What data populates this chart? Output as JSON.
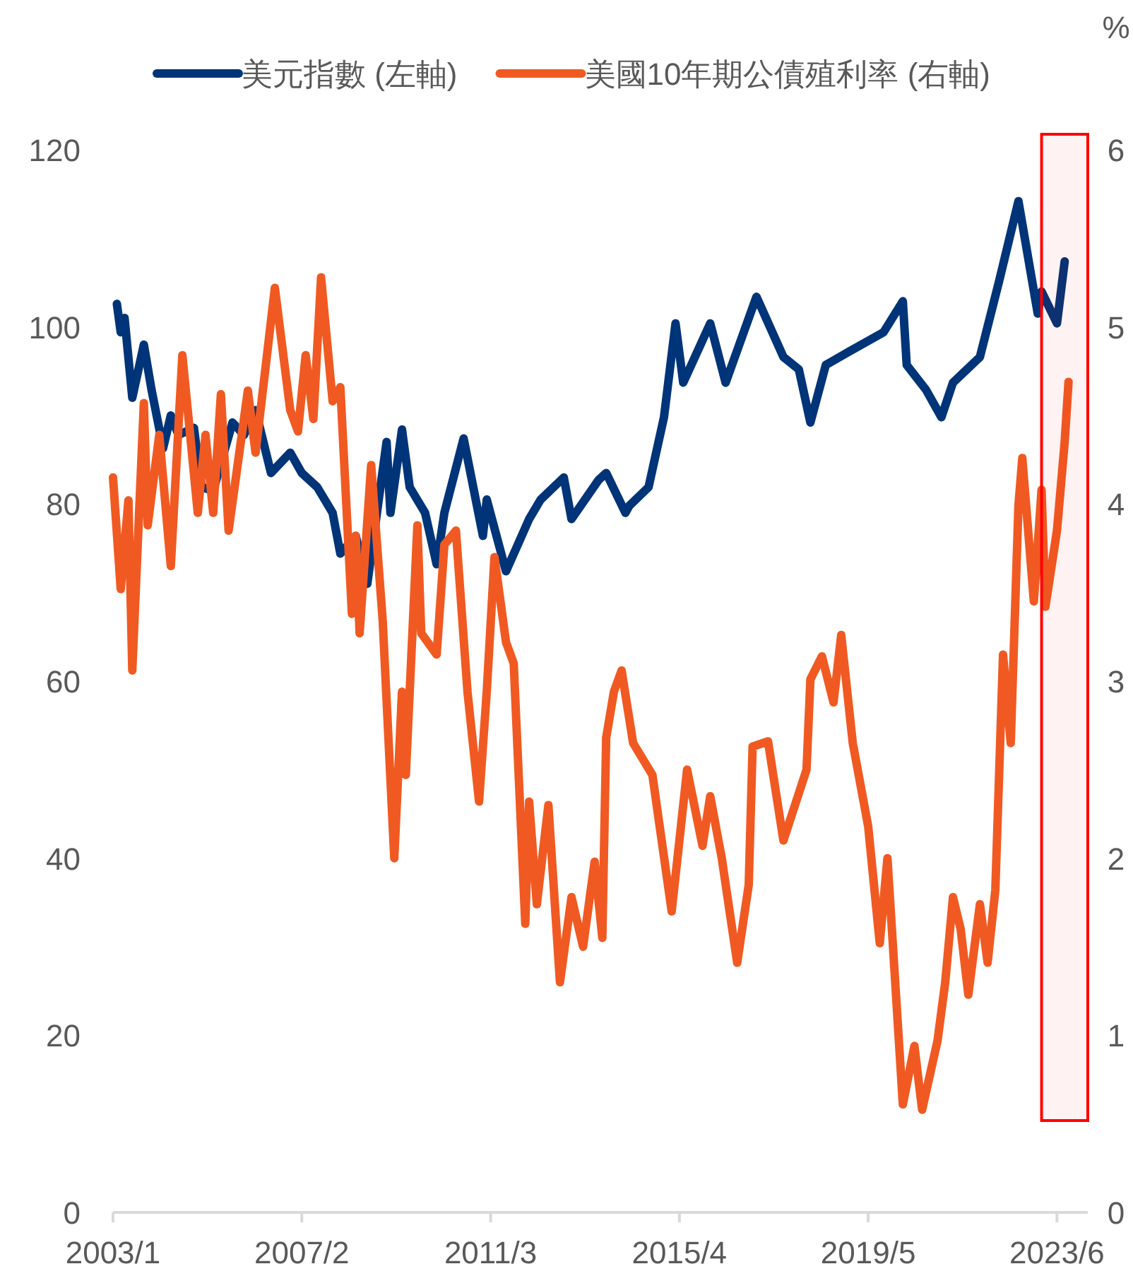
{
  "chart_data": {
    "type": "line",
    "y2label": "%",
    "legend": "top",
    "line_style": "solid",
    "marker": "none",
    "xlim": [
      "2003-01",
      "2024-02"
    ],
    "xticks": [
      {
        "value": "2003-01",
        "label": "2003/1"
      },
      {
        "value": "2007-02",
        "label": "2007/2"
      },
      {
        "value": "2011-03",
        "label": "2011/3"
      },
      {
        "value": "2015-04",
        "label": "2015/4"
      },
      {
        "value": "2019-05",
        "label": "2019/5"
      },
      {
        "value": "2023-06",
        "label": "2023/6"
      }
    ],
    "ylim": [
      0,
      120
    ],
    "yticks": [
      0,
      20,
      40,
      60,
      80,
      100,
      120
    ],
    "y2lim": [
      0,
      6
    ],
    "y2ticks": [
      0,
      1,
      2,
      3,
      4,
      5,
      6
    ],
    "bands": [
      {
        "axis": "x",
        "from": "2023-02",
        "to": "2024-02",
        "color": "#ff0000"
      }
    ],
    "series": [
      {
        "name": "美元指數 (左軸)",
        "color": "#003478",
        "x": [
          "2003-02",
          "2003-03",
          "2003-04",
          "2003-06",
          "2003-09",
          "2003-11",
          "2004-02",
          "2004-04",
          "2004-06",
          "2004-10",
          "2004-12",
          "2005-03",
          "2005-08",
          "2005-11",
          "2006-02",
          "2006-06",
          "2006-11",
          "2007-02",
          "2007-06",
          "2007-10",
          "2007-12",
          "2008-04",
          "2008-07",
          "2008-12",
          "2009-01",
          "2009-04",
          "2009-06",
          "2009-10",
          "2010-01",
          "2010-03",
          "2010-08",
          "2010-10",
          "2011-01",
          "2011-02",
          "2011-07",
          "2012-01",
          "2012-04",
          "2012-10",
          "2012-12",
          "2013-07",
          "2013-09",
          "2014-02",
          "2014-03",
          "2014-08",
          "2014-12",
          "2015-03",
          "2015-05",
          "2015-12",
          "2016-04",
          "2016-12",
          "2017-07",
          "2017-11",
          "2018-02",
          "2018-06",
          "2018-12",
          "2019-09",
          "2020-02",
          "2020-03",
          "2020-08",
          "2020-12",
          "2021-03",
          "2021-10",
          "2022-03",
          "2022-08",
          "2023-01",
          "2023-02",
          "2023-06",
          "2023-08"
        ],
        "values": [
          102.6,
          99.4,
          101,
          92,
          98,
          92.9,
          86.3,
          90,
          87.8,
          88.6,
          81.9,
          81.5,
          89.2,
          87.8,
          90.6,
          83.5,
          85.8,
          83.5,
          81.9,
          79,
          74.4,
          76.4,
          71,
          87,
          79,
          88.4,
          81.9,
          79,
          73.2,
          79,
          87.4,
          83,
          76.4,
          80.5,
          72.4,
          78.3,
          80.5,
          83,
          78.3,
          82.7,
          83.5,
          79,
          79.8,
          81.9,
          89.8,
          100.4,
          93.7,
          100.4,
          93.7,
          103.4,
          96.6,
          95.2,
          89.2,
          95.7,
          97.2,
          99.4,
          102.9,
          95.7,
          92.9,
          89.8,
          93.7,
          96.6,
          105.2,
          114.2,
          101.5,
          104,
          100.4,
          107.4
        ]
      },
      {
        "name": "美國10年期公債殖利率 (右軸)",
        "color": "#f05a22",
        "axis": "y2",
        "x": [
          "2003-01",
          "2003-03",
          "2003-05",
          "2003-06",
          "2003-09",
          "2003-10",
          "2004-01",
          "2004-04",
          "2004-07",
          "2004-11",
          "2005-01",
          "2005-03",
          "2005-05",
          "2005-07",
          "2005-12",
          "2006-02",
          "2006-07",
          "2006-11",
          "2007-01",
          "2007-03",
          "2007-05",
          "2007-07",
          "2007-10",
          "2007-12",
          "2008-03",
          "2008-04",
          "2008-05",
          "2008-08",
          "2008-11",
          "2009-02",
          "2009-04",
          "2009-05",
          "2009-08",
          "2009-09",
          "2010-01",
          "2010-03",
          "2010-06",
          "2010-09",
          "2010-12",
          "2011-02",
          "2011-04",
          "2011-07",
          "2011-09",
          "2011-12",
          "2012-01",
          "2012-03",
          "2012-06",
          "2012-09",
          "2012-12",
          "2013-03",
          "2013-06",
          "2013-08",
          "2013-09",
          "2013-11",
          "2014-01",
          "2014-04",
          "2014-09",
          "2015-02",
          "2015-06",
          "2015-10",
          "2015-12",
          "2016-03",
          "2016-07",
          "2016-10",
          "2016-11",
          "2017-03",
          "2017-07",
          "2018-01",
          "2018-02",
          "2018-05",
          "2018-08",
          "2018-10",
          "2019-01",
          "2019-05",
          "2019-08",
          "2019-10",
          "2020-02",
          "2020-05",
          "2020-07",
          "2020-11",
          "2021-01",
          "2021-03",
          "2021-05",
          "2021-07",
          "2021-10",
          "2021-12",
          "2022-02",
          "2022-04",
          "2022-06",
          "2022-08",
          "2022-09",
          "2022-12",
          "2023-02",
          "2023-03",
          "2023-06",
          "2023-08",
          "2023-09"
        ],
        "values": [
          4.15,
          3.52,
          4.02,
          3.06,
          4.57,
          3.88,
          4.39,
          3.65,
          4.84,
          3.95,
          4.39,
          3.95,
          4.62,
          3.85,
          4.64,
          4.29,
          5.22,
          4.53,
          4.41,
          4.84,
          4.48,
          5.28,
          4.58,
          4.66,
          3.38,
          3.82,
          3.27,
          4.22,
          3.34,
          2.0,
          2.94,
          2.47,
          3.88,
          3.27,
          3.15,
          3.77,
          3.85,
          2.94,
          2.32,
          2.94,
          3.7,
          3.22,
          3.1,
          1.63,
          2.32,
          1.74,
          2.3,
          1.3,
          1.78,
          1.5,
          1.98,
          1.55,
          2.68,
          2.94,
          3.06,
          2.65,
          2.47,
          1.7,
          2.5,
          2.07,
          2.35,
          2.0,
          1.41,
          1.85,
          2.63,
          2.66,
          2.1,
          2.5,
          3.01,
          3.14,
          2.88,
          3.26,
          2.65,
          2.18,
          1.52,
          2.0,
          0.61,
          0.94,
          0.58,
          0.97,
          1.3,
          1.78,
          1.6,
          1.23,
          1.74,
          1.41,
          1.82,
          3.15,
          2.65,
          3.99,
          4.26,
          3.45,
          4.08,
          3.42,
          3.85,
          4.35,
          4.69
        ]
      }
    ]
  }
}
